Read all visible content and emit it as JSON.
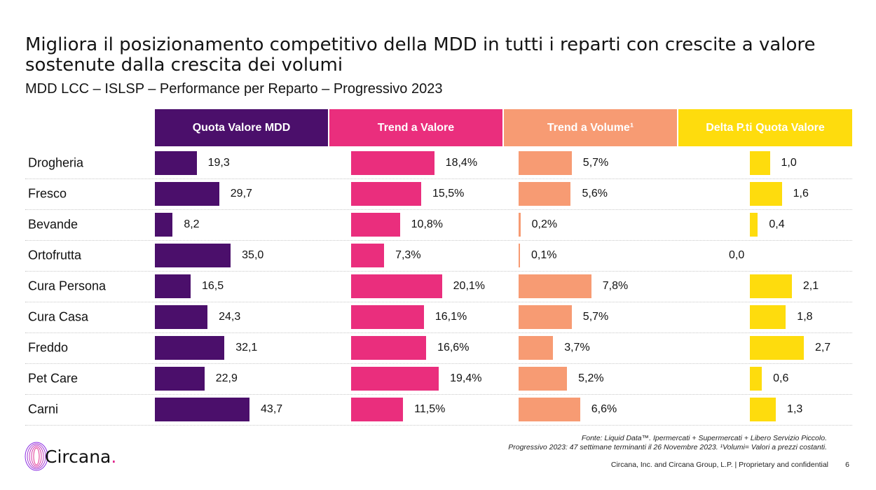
{
  "title": "Migliora il posizionamento competitivo della MDD in tutti i reparti con crescite a valore sostenute dalla crescita dei volumi",
  "subtitle": "MDD LCC – ISLSP – Performance per Reparto – Progressivo 2023",
  "colors": {
    "quota": "#4b0f6b",
    "trend_valore": "#ea2e7d",
    "trend_volume": "#f79b73",
    "delta": "#fedc0d"
  },
  "chart_data": {
    "type": "bar",
    "categories": [
      "Drogheria",
      "Fresco",
      "Bevande",
      "Ortofrutta",
      "Cura Persona",
      "Cura Casa",
      "Freddo",
      "Pet Care",
      "Carni"
    ],
    "series": [
      {
        "name": "Quota Valore MDD",
        "values": [
          19.3,
          29.7,
          8.2,
          35.0,
          16.5,
          24.3,
          32.1,
          22.9,
          43.7
        ],
        "labels": [
          "19,3",
          "29,7",
          "8,2",
          "35,0",
          "16,5",
          "24,3",
          "32,1",
          "22,9",
          "43,7"
        ],
        "color": "#4b0f6b"
      },
      {
        "name": "Trend a Valore",
        "values": [
          18.4,
          15.5,
          10.8,
          7.3,
          20.1,
          16.1,
          16.6,
          19.4,
          11.5
        ],
        "labels": [
          "18,4%",
          "15,5%",
          "10,8%",
          "7,3%",
          "20,1%",
          "16,1%",
          "16,6%",
          "19,4%",
          "11,5%"
        ],
        "color": "#ea2e7d"
      },
      {
        "name": "Trend a Volume¹",
        "values": [
          5.7,
          5.6,
          0.2,
          0.1,
          7.8,
          5.7,
          3.7,
          5.2,
          6.6
        ],
        "labels": [
          "5,7%",
          "5,6%",
          "0,2%",
          "0,1%",
          "7,8%",
          "5,7%",
          "3,7%",
          "5,2%",
          "6,6%"
        ],
        "color": "#f79b73"
      },
      {
        "name": "Delta P.ti Quota Valore",
        "values": [
          1.0,
          1.6,
          0.4,
          0.0,
          2.1,
          1.8,
          2.7,
          0.6,
          1.3
        ],
        "labels": [
          "1,0",
          "1,6",
          "0,4",
          "0,0",
          "2,1",
          "1,8",
          "2,7",
          "0,6",
          "1,3"
        ],
        "color": "#fedc0d"
      }
    ]
  },
  "source": {
    "line1": "Fonte: Liquid Data™. Ipermercati + Supermercati + Libero Servizio Piccolo.",
    "line2": "Progressivo 2023: 47 settimane terminanti il 26 Novembre 2023. ¹Volumi= Valori a prezzi costanti."
  },
  "footer": "Circana, Inc. and Circana Group, L.P. |  Proprietary and confidential",
  "page_number": "6",
  "logo": {
    "word": "Circana",
    "dot": "."
  }
}
